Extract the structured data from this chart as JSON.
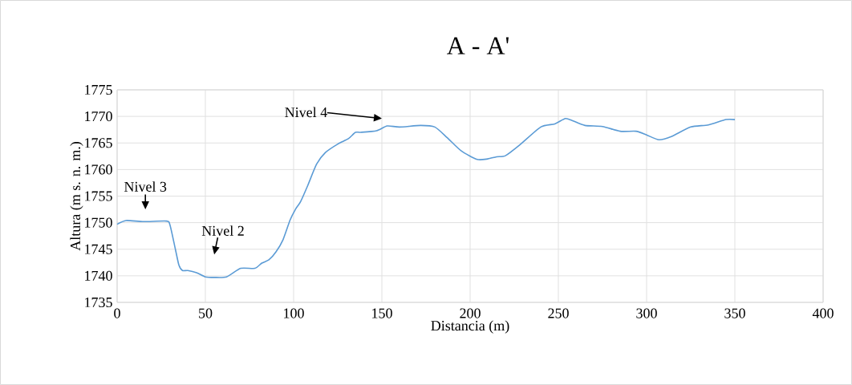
{
  "chart_data": {
    "type": "line",
    "title": "A - A'",
    "xlabel": "Distancia (m)",
    "ylabel": "Altura (m s. n. m.)",
    "x": [
      0,
      5,
      15,
      28,
      30,
      33,
      35,
      37,
      40,
      45,
      50,
      55,
      62,
      70,
      78,
      82,
      86,
      90,
      94,
      98,
      101,
      104,
      108,
      113,
      118,
      125,
      131,
      135,
      138,
      147,
      153,
      160,
      172,
      180,
      187,
      195,
      204,
      210,
      215,
      220,
      228,
      240,
      248,
      254,
      258,
      265,
      275,
      285,
      294,
      300,
      307,
      314,
      325,
      335,
      345,
      350
    ],
    "series": [
      {
        "color": "#5b9bd5",
        "values": [
          1749.7,
          1750.4,
          1750.2,
          1750.3,
          1749.5,
          1745,
          1742,
          1741,
          1741,
          1740.6,
          1739.8,
          1739.7,
          1739.8,
          1741.4,
          1741.4,
          1742.4,
          1743,
          1744.5,
          1746.8,
          1750.5,
          1752.5,
          1754,
          1757,
          1761,
          1763.2,
          1764.8,
          1765.8,
          1767,
          1767,
          1767.3,
          1768.2,
          1768,
          1768.3,
          1768,
          1766,
          1763.5,
          1761.9,
          1762,
          1762.4,
          1762.6,
          1764.6,
          1768,
          1768.6,
          1769.6,
          1769.2,
          1768.3,
          1768.1,
          1767.2,
          1767.2,
          1766.5,
          1765.6,
          1766.2,
          1768,
          1768.4,
          1769.4,
          1769.4
        ]
      }
    ],
    "xlim": [
      0,
      400
    ],
    "xticks": [
      0,
      50,
      100,
      150,
      200,
      250,
      300,
      350,
      400
    ],
    "ylim": [
      1735,
      1775
    ],
    "yticks": [
      1735,
      1740,
      1745,
      1750,
      1755,
      1760,
      1765,
      1770,
      1775
    ],
    "grid": true,
    "marker": "none",
    "line_style": "solid",
    "annotations": [
      "Nivel 3",
      "Nivel 2",
      "Nivel 4"
    ]
  }
}
